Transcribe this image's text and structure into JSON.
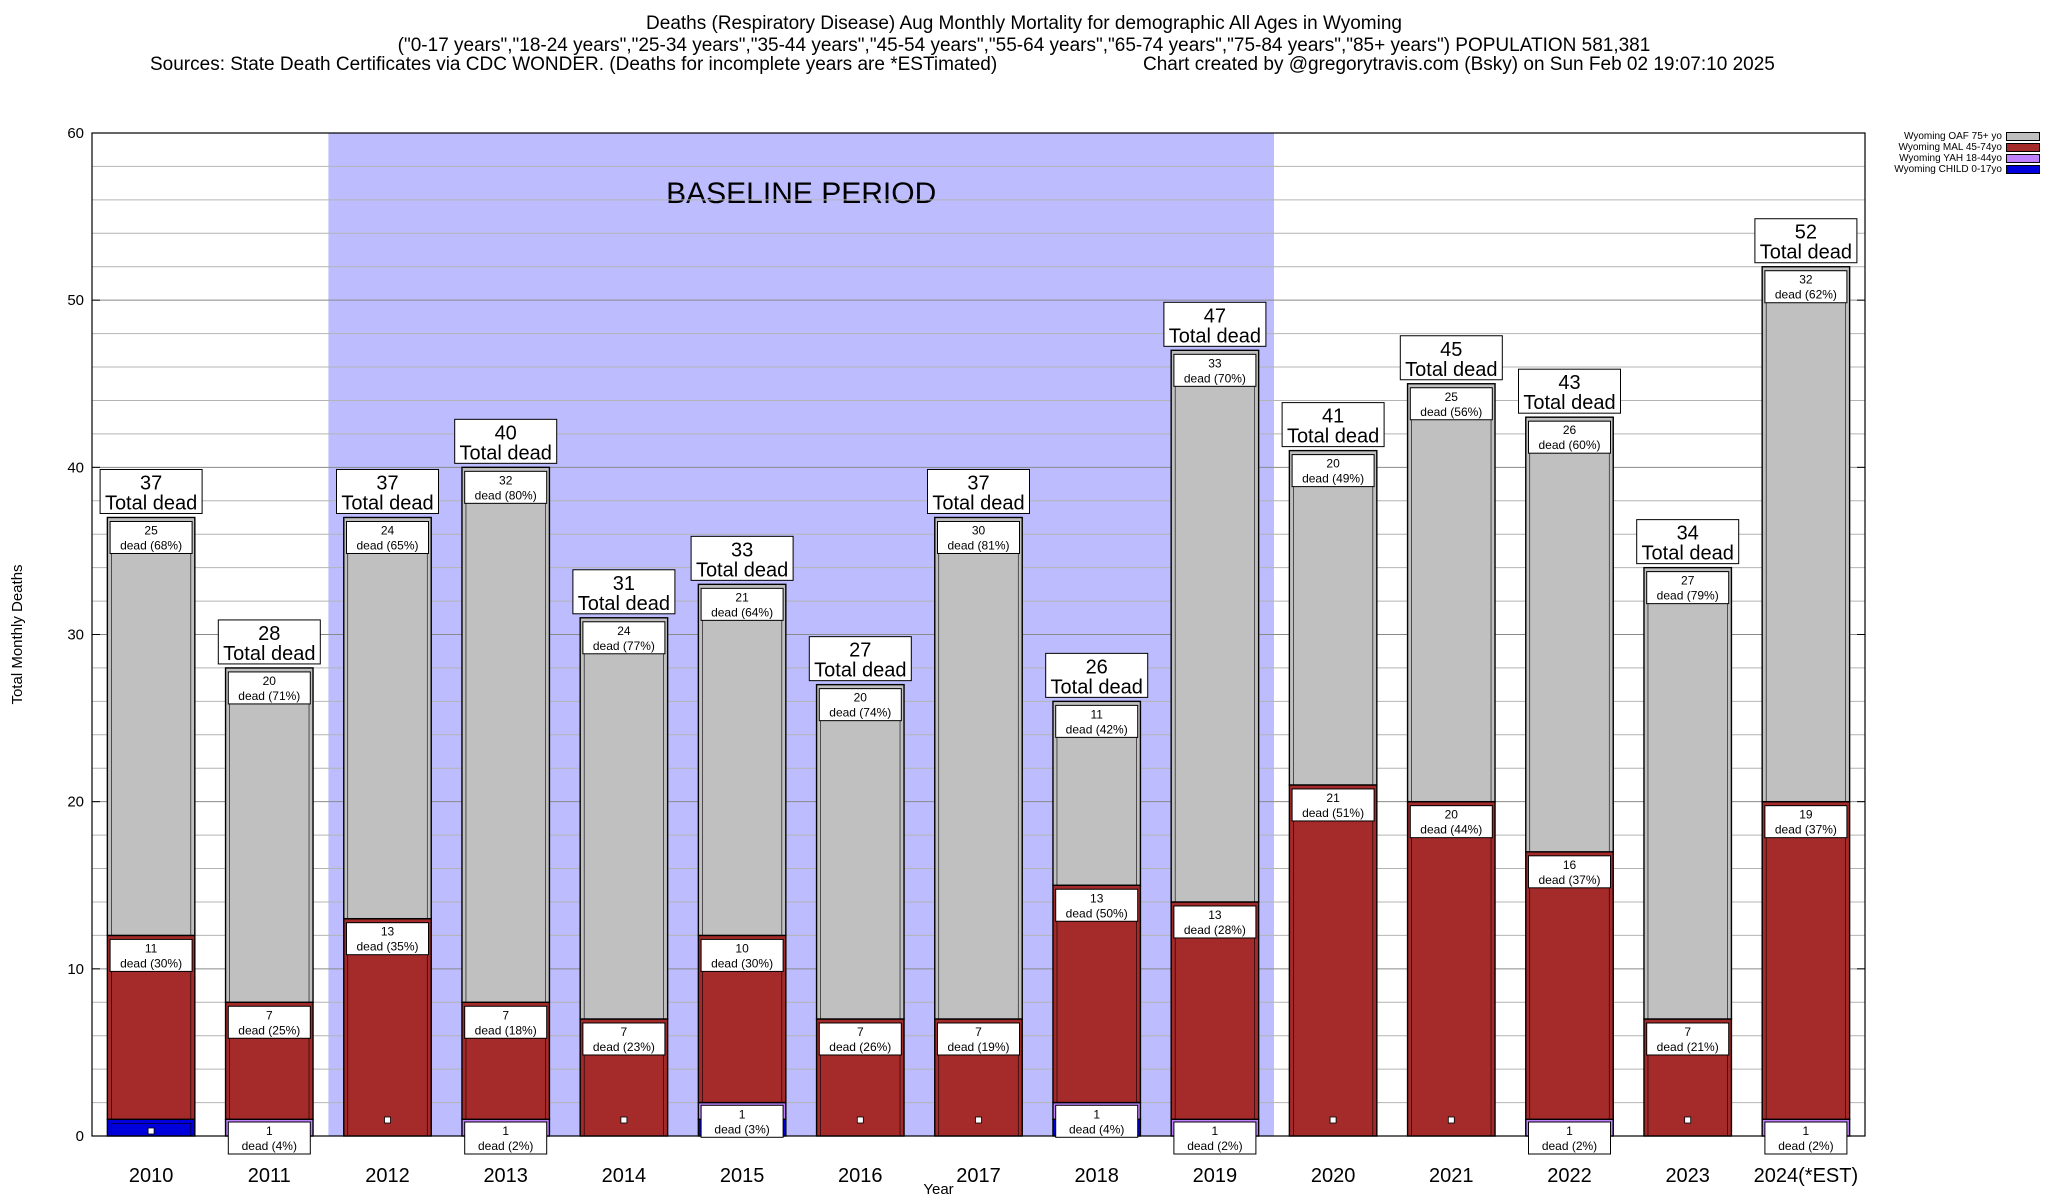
{
  "header": {
    "title_line1": "Deaths (Respiratory Disease) Aug Monthly Mortality for demographic All Ages in Wyoming",
    "title_line2": "(\"0-17 years\",\"18-24 years\",\"25-34 years\",\"35-44 years\",\"45-54 years\",\"55-64 years\",\"65-74 years\",\"75-84 years\",\"85+ years\") POPULATION 581,381",
    "sources": "Sources: State Death Certificates via CDC WONDER. (Deaths for incomplete years are *ESTimated)",
    "credit": "Chart created by @gregorytravis.com (Bsky) on Sun Feb 02 19:07:10 2025"
  },
  "chart_data": {
    "type": "bar",
    "stacked": true,
    "xlabel": "Year",
    "ylabel": "Total Monthly Deaths",
    "ylim": [
      0,
      60
    ],
    "yticks": [
      0,
      10,
      20,
      30,
      40,
      50,
      60
    ],
    "grid": true,
    "baseline_label": "BASELINE PERIOD",
    "baseline_range": [
      "2012",
      "2019"
    ],
    "categories": [
      "2010",
      "2011",
      "2012",
      "2013",
      "2014",
      "2015",
      "2016",
      "2017",
      "2018",
      "2019",
      "2020",
      "2021",
      "2022",
      "2023",
      "2024(*EST)"
    ],
    "series": [
      {
        "name": "Wyoming CHILD 0-17yo",
        "color": "#0000dd",
        "values": [
          1,
          0,
          0,
          0,
          0,
          1,
          0,
          0,
          1,
          0,
          0,
          0,
          0,
          0,
          0
        ]
      },
      {
        "name": "Wyoming YAH 18-44yo",
        "color": "#c080ff",
        "values": [
          0,
          1,
          0,
          1,
          0,
          1,
          0,
          0,
          1,
          1,
          0,
          0,
          1,
          0,
          1
        ]
      },
      {
        "name": "Wyoming MAL 45-74yo",
        "color": "#a52a2a",
        "values": [
          11,
          7,
          13,
          7,
          7,
          10,
          7,
          7,
          13,
          13,
          21,
          20,
          16,
          7,
          19
        ]
      },
      {
        "name": "Wyoming OAF 75+ yo",
        "color": "#c0c0c0",
        "values": [
          25,
          20,
          24,
          32,
          24,
          21,
          20,
          30,
          11,
          33,
          20,
          25,
          26,
          27,
          32
        ]
      }
    ],
    "totals": [
      37,
      28,
      37,
      40,
      31,
      33,
      27,
      37,
      26,
      47,
      41,
      45,
      43,
      34,
      52
    ],
    "total_caption": "Total dead",
    "segment_labels": {
      "Wyoming OAF 75+ yo": [
        "dead (68%)",
        "dead (71%)",
        "dead (65%)",
        "dead (80%)",
        "dead (77%)",
        "dead (64%)",
        "dead (74%)",
        "dead (81%)",
        "dead (42%)",
        "dead (70%)",
        "dead (49%)",
        "dead (56%)",
        "dead (60%)",
        "dead (79%)",
        "dead (62%)"
      ],
      "Wyoming MAL 45-74yo": [
        "dead (30%)",
        "dead (25%)",
        "dead (35%)",
        "dead (18%)",
        "dead (23%)",
        "dead (30%)",
        "dead (26%)",
        "dead (19%)",
        "dead (50%)",
        "dead (28%)",
        "dead (51%)",
        "dead (44%)",
        "dead (37%)",
        "dead (21%)",
        "dead (37%)"
      ],
      "Wyoming YAH 18-44yo": [
        "",
        "dead (4%)",
        "",
        "dead (2%)",
        "",
        "dead (3%)",
        "",
        "",
        "dead (4%)",
        "dead (2%)",
        "",
        "",
        "dead (2%)",
        "",
        "dead (2%)"
      ]
    },
    "legend": {
      "placement": "top-right",
      "entries": [
        "Wyoming OAF 75+ yo",
        "Wyoming MAL 45-74yo",
        "Wyoming YAH 18-44yo",
        "Wyoming CHILD 0-17yo"
      ]
    }
  }
}
